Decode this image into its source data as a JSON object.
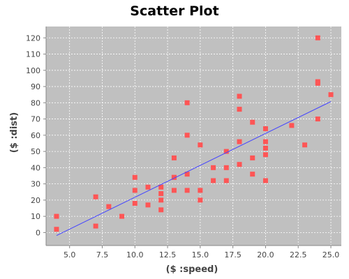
{
  "chart_data": {
    "type": "scatter",
    "title": "Scatter Plot",
    "xlabel": "($ :speed)",
    "ylabel": "($ :dist)",
    "xlim": [
      3.2,
      25.8
    ],
    "ylim": [
      -8,
      127
    ],
    "x_ticks": [
      5.0,
      7.5,
      10.0,
      12.5,
      15.0,
      17.5,
      20.0,
      22.5,
      25.0
    ],
    "x_tick_labels": [
      "5.0",
      "7.5",
      "10.0",
      "12.5",
      "15.0",
      "17.5",
      "20.0",
      "22.5",
      "25.0"
    ],
    "y_ticks": [
      0,
      10,
      20,
      30,
      40,
      50,
      60,
      70,
      80,
      90,
      100,
      110,
      120
    ],
    "y_tick_labels": [
      "0",
      "10",
      "20",
      "30",
      "40",
      "50",
      "60",
      "70",
      "80",
      "90",
      "100",
      "110",
      "120"
    ],
    "grid": true,
    "plot_background": "#c0c0c0",
    "point_color": "#ff5555",
    "fit_line_color": "#4444ff",
    "points": [
      {
        "x": 4,
        "y": 2
      },
      {
        "x": 4,
        "y": 10
      },
      {
        "x": 7,
        "y": 4
      },
      {
        "x": 7,
        "y": 22
      },
      {
        "x": 8,
        "y": 16
      },
      {
        "x": 9,
        "y": 10
      },
      {
        "x": 10,
        "y": 18
      },
      {
        "x": 10,
        "y": 26
      },
      {
        "x": 10,
        "y": 34
      },
      {
        "x": 11,
        "y": 17
      },
      {
        "x": 11,
        "y": 28
      },
      {
        "x": 12,
        "y": 14
      },
      {
        "x": 12,
        "y": 20
      },
      {
        "x": 12,
        "y": 24
      },
      {
        "x": 12,
        "y": 28
      },
      {
        "x": 13,
        "y": 26
      },
      {
        "x": 13,
        "y": 34
      },
      {
        "x": 13,
        "y": 34
      },
      {
        "x": 13,
        "y": 46
      },
      {
        "x": 14,
        "y": 26
      },
      {
        "x": 14,
        "y": 36
      },
      {
        "x": 14,
        "y": 60
      },
      {
        "x": 14,
        "y": 80
      },
      {
        "x": 15,
        "y": 20
      },
      {
        "x": 15,
        "y": 26
      },
      {
        "x": 15,
        "y": 54
      },
      {
        "x": 16,
        "y": 32
      },
      {
        "x": 16,
        "y": 40
      },
      {
        "x": 17,
        "y": 32
      },
      {
        "x": 17,
        "y": 40
      },
      {
        "x": 17,
        "y": 50
      },
      {
        "x": 18,
        "y": 42
      },
      {
        "x": 18,
        "y": 56
      },
      {
        "x": 18,
        "y": 76
      },
      {
        "x": 18,
        "y": 84
      },
      {
        "x": 19,
        "y": 36
      },
      {
        "x": 19,
        "y": 46
      },
      {
        "x": 19,
        "y": 68
      },
      {
        "x": 20,
        "y": 32
      },
      {
        "x": 20,
        "y": 48
      },
      {
        "x": 20,
        "y": 52
      },
      {
        "x": 20,
        "y": 56
      },
      {
        "x": 20,
        "y": 64
      },
      {
        "x": 22,
        "y": 66
      },
      {
        "x": 23,
        "y": 54
      },
      {
        "x": 24,
        "y": 70
      },
      {
        "x": 24,
        "y": 92
      },
      {
        "x": 24,
        "y": 93
      },
      {
        "x": 24,
        "y": 120
      },
      {
        "x": 25,
        "y": 85
      }
    ],
    "fit_line": {
      "x": [
        4,
        25
      ],
      "y": [
        -1.85,
        80.73
      ]
    }
  }
}
